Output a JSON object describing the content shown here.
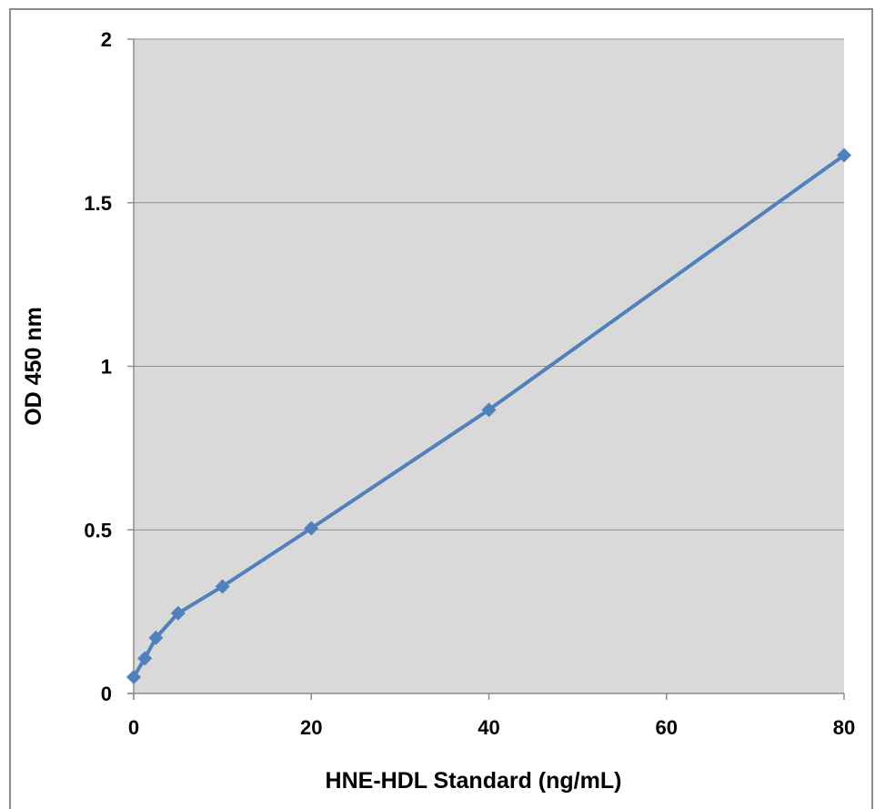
{
  "chart_data": {
    "type": "line",
    "xlabel": "HNE-HDL Standard (ng/mL)",
    "ylabel": "OD 450 nm",
    "xlim": [
      0,
      80
    ],
    "ylim": [
      0,
      2
    ],
    "xticks": [
      "0",
      "20",
      "40",
      "60",
      "80"
    ],
    "yticks": [
      "0",
      "0.5",
      "1",
      "1.5",
      "2"
    ],
    "grid": "horizontal",
    "series": [
      {
        "x": [
          0,
          1.25,
          2.5,
          5,
          10,
          20,
          40,
          80
        ],
        "y": [
          0.05,
          0.107,
          0.17,
          0.245,
          0.327,
          0.505,
          0.867,
          1.645
        ],
        "color": "#4f81bd",
        "marker": "diamond"
      }
    ],
    "plot_background": "#d9d9d9",
    "gridline_color": "#8c8c8c"
  }
}
